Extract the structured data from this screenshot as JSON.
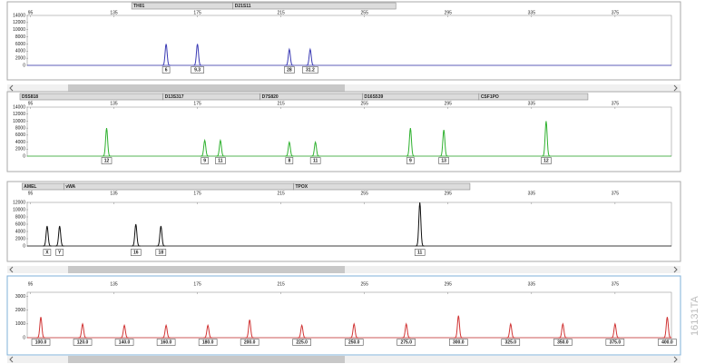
{
  "figure_code": "16131TA",
  "chart_data": [
    {
      "type": "peaks",
      "color": "#3a3ab4",
      "xlim": [
        90,
        402
      ],
      "xticks": [
        95,
        135,
        175,
        215,
        255,
        295,
        335,
        375
      ],
      "ylim": [
        0,
        14000
      ],
      "yticks": [
        0,
        2000,
        4000,
        6000,
        8000,
        10000,
        12000,
        14000
      ],
      "loci": [
        {
          "name": "TH01",
          "range": [
            143.5,
            192
          ]
        },
        {
          "name": "D21S11",
          "range": [
            192,
            270
          ]
        }
      ],
      "x": [
        160,
        175,
        219,
        229
      ],
      "values": [
        6000,
        6000,
        4500,
        4500
      ],
      "allele_labels": [
        "6",
        "9.3",
        "28",
        "31.2"
      ]
    },
    {
      "type": "peaks",
      "color": "#2fb12f",
      "xlim": [
        90,
        402
      ],
      "xticks": [
        95,
        135,
        175,
        215,
        255,
        295,
        335,
        375
      ],
      "ylim": [
        0,
        14000
      ],
      "yticks": [
        0,
        2000,
        4000,
        6000,
        8000,
        10000,
        12000,
        14000
      ],
      "loci": [
        {
          "name": "D5S818",
          "range": [
            90,
            158.5
          ]
        },
        {
          "name": "D13S317",
          "range": [
            158.5,
            205
          ]
        },
        {
          "name": "D7S820",
          "range": [
            205,
            254
          ]
        },
        {
          "name": "D16S539",
          "range": [
            254,
            309.8
          ]
        },
        {
          "name": "CSF1PO",
          "range": [
            309.8,
            362
          ]
        }
      ],
      "x": [
        131.5,
        178.5,
        186,
        219,
        231.5,
        277,
        293,
        342
      ],
      "values": [
        8000,
        4500,
        4500,
        4000,
        4000,
        8000,
        7500,
        10000
      ],
      "allele_labels": [
        "12",
        "9",
        "11",
        "8",
        "11",
        "9",
        "13",
        "12"
      ]
    },
    {
      "type": "peaks",
      "color": "#111111",
      "xlim": [
        90,
        402
      ],
      "xticks": [
        95,
        135,
        175,
        215,
        255,
        295,
        335,
        375
      ],
      "ylim": [
        0,
        12000
      ],
      "yticks": [
        0,
        2000,
        4000,
        6000,
        8000,
        10000,
        12000
      ],
      "loci": [
        {
          "name": "AMEL",
          "range": [
            91,
            111
          ]
        },
        {
          "name": "vWA",
          "range": [
            111,
            221
          ]
        },
        {
          "name": "TPOX",
          "range": [
            221,
            305.5
          ]
        }
      ],
      "x": [
        103,
        109,
        145.5,
        157.5,
        281.5
      ],
      "values": [
        5500,
        5500,
        6000,
        5500,
        12000
      ],
      "allele_labels": [
        "X",
        "Y",
        "16",
        "18",
        "11"
      ]
    },
    {
      "type": "peaks",
      "color": "#d03434",
      "xlim": [
        90,
        402
      ],
      "xticks": [
        95,
        135,
        175,
        215,
        255,
        295,
        335,
        375
      ],
      "ylim": [
        0,
        3300
      ],
      "yticks": [
        0,
        1000,
        2000,
        3000
      ],
      "loci": [],
      "x": [
        100,
        120,
        140,
        160,
        180,
        200,
        225,
        250,
        275,
        300,
        325,
        350,
        375,
        400
      ],
      "values": [
        1500,
        1000,
        900,
        900,
        900,
        1300,
        900,
        1000,
        1000,
        1600,
        1000,
        1000,
        1000,
        1500
      ],
      "allele_labels": [
        "100.0",
        "120.0",
        "140.0",
        "160.0",
        "180.0",
        "200.0",
        "225.0",
        "250.0",
        "275.0",
        "300.0",
        "325.0",
        "350.0",
        "375.0",
        "400.0"
      ]
    }
  ]
}
